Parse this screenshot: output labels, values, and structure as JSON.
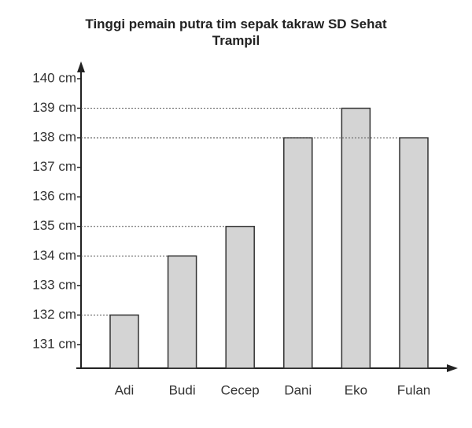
{
  "chart_data": {
    "type": "bar",
    "title": "Tinggi pemain putra tim sepak takraw SD Sehat Trampil",
    "categories": [
      "Adi",
      "Budi",
      "Cecep",
      "Dani",
      "Eko",
      "Fulan"
    ],
    "values": [
      132,
      134,
      135,
      138,
      139,
      138
    ],
    "color": "#d4d4d4",
    "ylim": [
      130.2,
      140.4
    ],
    "yticks": [
      {
        "value": 131,
        "label": "131 cm"
      },
      {
        "value": 132,
        "label": "132 cm"
      },
      {
        "value": 133,
        "label": "133 cm"
      },
      {
        "value": 134,
        "label": "134 cm"
      },
      {
        "value": 135,
        "label": "135 cm"
      },
      {
        "value": 136,
        "label": "136 cm"
      },
      {
        "value": 137,
        "label": "137 cm"
      },
      {
        "value": 138,
        "label": "138 cm"
      },
      {
        "value": 139,
        "label": "139 cm"
      },
      {
        "value": 140,
        "label": "140 cm"
      }
    ]
  }
}
